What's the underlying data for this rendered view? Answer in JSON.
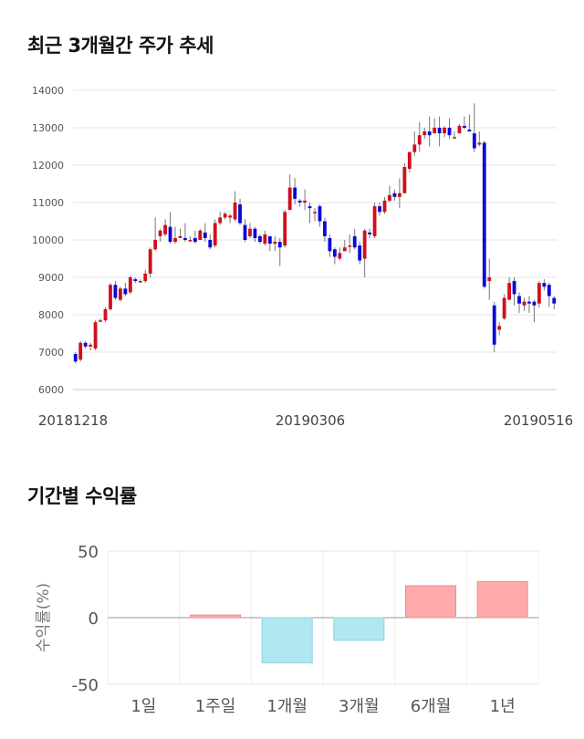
{
  "sections": {
    "price_title": "최근 3개월간 주가 추세",
    "returns_title": "기간별 수익률"
  },
  "chart_data": [
    {
      "type": "candlestick",
      "title": "최근 3개월간 주가 추세",
      "ylim": [
        6000,
        14000
      ],
      "y_ticks": [
        "14000",
        "13000",
        "12000",
        "11000",
        "10000",
        "9000",
        "8000",
        "7000",
        "6000"
      ],
      "x_tick_labels": [
        "20181218",
        "20190306",
        "20190516"
      ],
      "grid": true,
      "colors": {
        "up": "#d0101b",
        "down": "#0a0ad8",
        "wick": "#777777"
      },
      "candles": [
        [
          6950,
          6750,
          7000,
          6700
        ],
        [
          6800,
          7250,
          7300,
          6750
        ],
        [
          7250,
          7150,
          7300,
          7100
        ],
        [
          7150,
          7200,
          7250,
          7050
        ],
        [
          7100,
          7800,
          7850,
          7050
        ],
        [
          7850,
          7850,
          7900,
          7800
        ],
        [
          7850,
          8150,
          8200,
          7800
        ],
        [
          8150,
          8800,
          8850,
          8100
        ],
        [
          8800,
          8450,
          8900,
          8400
        ],
        [
          8400,
          8700,
          8750,
          8350
        ],
        [
          8700,
          8550,
          8850,
          8500
        ],
        [
          8600,
          9000,
          9050,
          8550
        ],
        [
          8950,
          8900,
          9000,
          8850
        ],
        [
          8900,
          8900,
          8950,
          8850
        ],
        [
          8900,
          9100,
          9200,
          8850
        ],
        [
          9100,
          9750,
          9800,
          9000
        ],
        [
          9750,
          10000,
          10600,
          9700
        ],
        [
          10100,
          10250,
          10300,
          9950
        ],
        [
          10150,
          10400,
          10550,
          10100
        ],
        [
          10350,
          9950,
          10750,
          9900
        ],
        [
          9950,
          10050,
          10350,
          9900
        ],
        [
          10050,
          10100,
          10300,
          10050
        ],
        [
          10050,
          10000,
          10450,
          9950
        ],
        [
          10000,
          10000,
          10100,
          9950
        ],
        [
          10050,
          9950,
          10250,
          9900
        ],
        [
          10000,
          10250,
          10300,
          10000
        ],
        [
          10200,
          10050,
          10450,
          9950
        ],
        [
          10000,
          9800,
          10150,
          9750
        ],
        [
          9850,
          10450,
          10550,
          9800
        ],
        [
          10450,
          10600,
          10750,
          10400
        ],
        [
          10600,
          10700,
          10750,
          10550
        ],
        [
          10600,
          10650,
          10700,
          10450
        ],
        [
          10550,
          11000,
          11300,
          10500
        ],
        [
          10950,
          10450,
          11100,
          10400
        ],
        [
          10400,
          10000,
          10550,
          9950
        ],
        [
          10100,
          10300,
          10450,
          10050
        ],
        [
          10300,
          10050,
          10350,
          9950
        ],
        [
          10100,
          9950,
          10150,
          9900
        ],
        [
          9900,
          10150,
          10250,
          9850
        ],
        [
          10100,
          9900,
          10050,
          9700
        ],
        [
          9900,
          9950,
          10100,
          9700
        ],
        [
          9950,
          9800,
          10050,
          9300
        ],
        [
          9850,
          10750,
          10800,
          9800
        ],
        [
          10800,
          11400,
          11750,
          10800
        ],
        [
          11400,
          11100,
          11650,
          10950
        ],
        [
          11050,
          11000,
          11100,
          10900
        ],
        [
          11000,
          11050,
          11350,
          10800
        ],
        [
          10900,
          10850,
          11000,
          10450
        ],
        [
          10750,
          10750,
          10850,
          10500
        ],
        [
          10900,
          10500,
          10950,
          10350
        ],
        [
          10500,
          10100,
          10600,
          9950
        ],
        [
          10050,
          9700,
          10150,
          9550
        ],
        [
          9750,
          9550,
          9800,
          9350
        ],
        [
          9500,
          9650,
          9800,
          9450
        ],
        [
          9700,
          9800,
          10000,
          9700
        ],
        [
          9850,
          9850,
          10150,
          9650
        ],
        [
          10100,
          9800,
          10300,
          9750
        ],
        [
          9850,
          9450,
          9950,
          9350
        ],
        [
          9500,
          10250,
          10300,
          9000
        ],
        [
          10200,
          10150,
          10300,
          10050
        ],
        [
          10100,
          10900,
          11000,
          10050
        ],
        [
          10900,
          10750,
          11000,
          10650
        ],
        [
          10750,
          11050,
          11150,
          10700
        ],
        [
          11050,
          11200,
          11450,
          11000
        ],
        [
          11250,
          11150,
          11350,
          11050
        ],
        [
          11150,
          11250,
          11650,
          10850
        ],
        [
          11250,
          11950,
          12050,
          11250
        ],
        [
          11900,
          12350,
          12350,
          11800
        ],
        [
          12350,
          12550,
          12900,
          12250
        ],
        [
          12550,
          12800,
          13150,
          12350
        ],
        [
          12800,
          12900,
          13000,
          12700
        ],
        [
          12900,
          12800,
          13300,
          12500
        ],
        [
          12850,
          13000,
          13250,
          12850
        ],
        [
          13000,
          12850,
          13300,
          12500
        ],
        [
          12850,
          13000,
          13050,
          12750
        ],
        [
          13000,
          12800,
          13250,
          12700
        ],
        [
          12750,
          12750,
          12900,
          12700
        ],
        [
          12850,
          13050,
          13100,
          12850
        ],
        [
          13050,
          13000,
          13300,
          12950
        ],
        [
          12950,
          12900,
          13350,
          12900
        ],
        [
          12850,
          12450,
          13650,
          12350
        ],
        [
          12550,
          12600,
          12900,
          12500
        ],
        [
          12600,
          8750,
          12650,
          8700
        ],
        [
          8900,
          9000,
          9500,
          8400
        ],
        [
          8250,
          7200,
          8350,
          7000
        ],
        [
          7600,
          7700,
          7800,
          7450
        ],
        [
          7900,
          8450,
          8550,
          7850
        ],
        [
          8400,
          8850,
          9000,
          8400
        ],
        [
          8900,
          8550,
          9000,
          8250
        ],
        [
          8500,
          8300,
          8600,
          8050
        ],
        [
          8250,
          8350,
          8450,
          8100
        ],
        [
          8350,
          8300,
          8500,
          8050
        ],
        [
          8350,
          8250,
          8400,
          7800
        ],
        [
          8300,
          8850,
          8900,
          8200
        ],
        [
          8850,
          8750,
          8950,
          8650
        ],
        [
          8800,
          8500,
          8850,
          8200
        ],
        [
          8450,
          8300,
          8500,
          8150
        ]
      ]
    },
    {
      "type": "bar",
      "title": "기간별 수익률",
      "ylabel": "수익률(%)",
      "ylim": [
        -50,
        50
      ],
      "y_ticks": [
        "50",
        "0",
        "-50"
      ],
      "categories": [
        "1일",
        "1주일",
        "1개월",
        "3개월",
        "6개월",
        "1년"
      ],
      "values": [
        0,
        2,
        -34,
        -17,
        24,
        27
      ],
      "grid": true,
      "colors": {
        "positive": "#ffaaaa",
        "positive_edge": "#f08c8c",
        "negative": "#b0e8f2",
        "negative_edge": "#8fd3e2"
      }
    }
  ]
}
